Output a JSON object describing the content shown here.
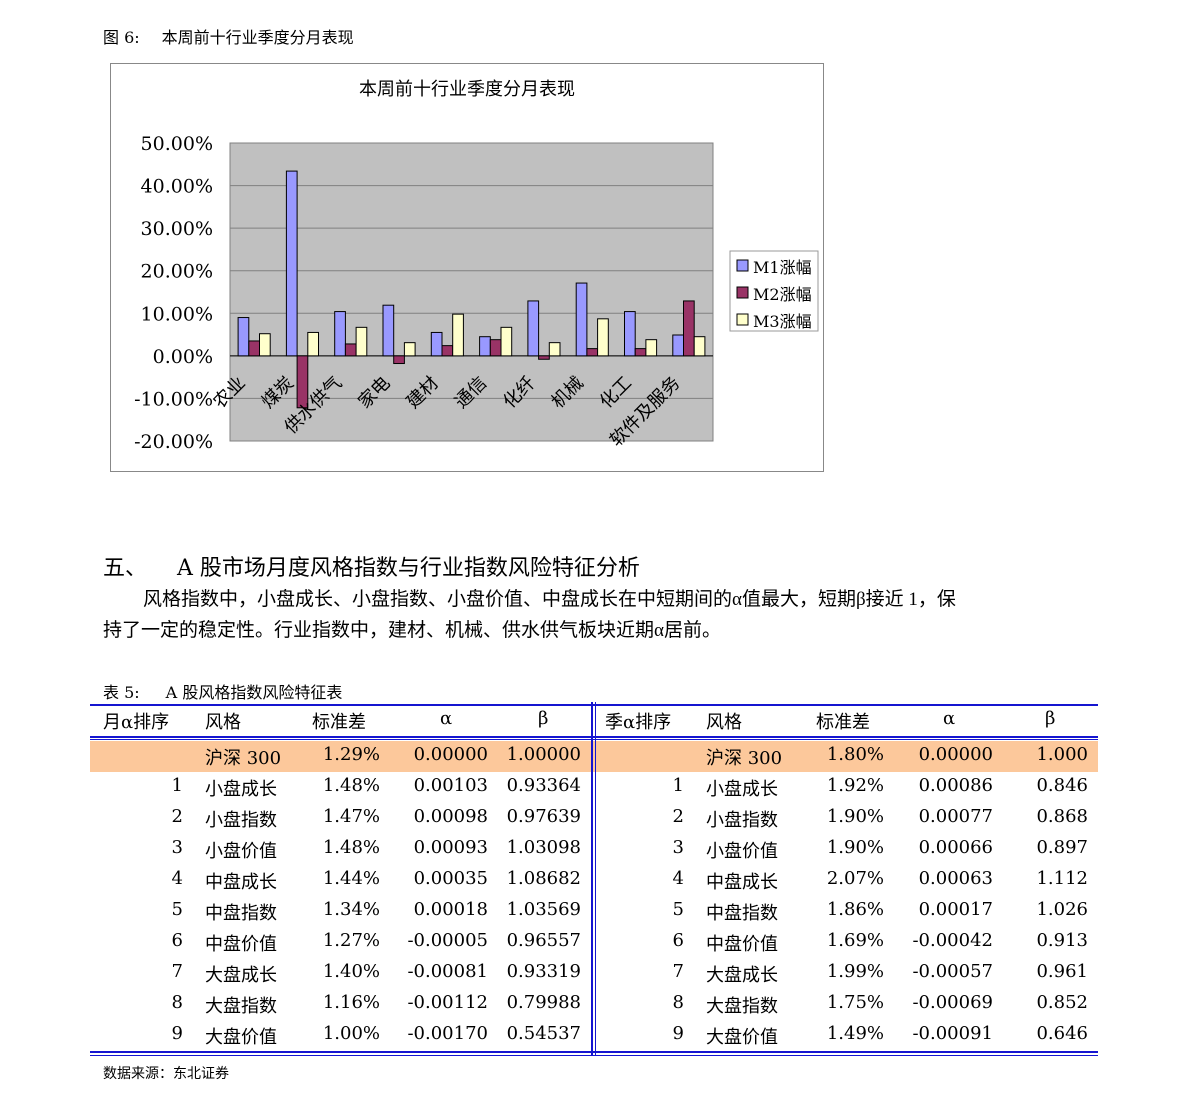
{
  "figure": {
    "label": "图 6:",
    "title": "本周前十行业季度分月表现"
  },
  "chart_data": {
    "type": "bar",
    "title": "本周前十行业季度分月表现",
    "categories": [
      "农业",
      "煤炭",
      "供水供气",
      "家电",
      "建材",
      "通信",
      "化纤",
      "机械",
      "化工",
      "软件及服务"
    ],
    "series": [
      {
        "name": "M1涨幅",
        "color": "#9999ff",
        "values": [
          9.0,
          43.4,
          10.4,
          11.9,
          5.5,
          4.5,
          12.9,
          17.1,
          10.4,
          4.9
        ]
      },
      {
        "name": "M2涨幅",
        "color": "#993366",
        "values": [
          3.5,
          -12.2,
          2.8,
          -1.8,
          2.4,
          3.8,
          -0.8,
          1.7,
          1.7,
          12.9
        ]
      },
      {
        "name": "M3涨幅",
        "color": "#ffffcc",
        "values": [
          5.2,
          5.5,
          6.7,
          3.1,
          9.8,
          6.7,
          3.1,
          8.7,
          3.8,
          4.5
        ]
      }
    ],
    "yticks": [
      "50.00%",
      "40.00%",
      "30.00%",
      "20.00%",
      "10.00%",
      "0.00%",
      "-10.00%",
      "-20.00%"
    ],
    "ylim": [
      -20,
      50
    ],
    "grid": true,
    "plot_background": "#c0c0c0",
    "legend": "right"
  },
  "section": {
    "number": "五、",
    "title": "A 股市场月度风格指数与行业指数风险特征分析",
    "para1": "风格指数中，小盘成长、小盘指数、小盘价值、中盘成长在中短期间的α值最大，短期β接近 1，保",
    "para2": "持了一定的稳定性。行业指数中，建材、机械、供水供气板块近期α居前。"
  },
  "table": {
    "label": "表 5:",
    "title": "A 股风格指数风险特征表",
    "left_headers": [
      "月α排序",
      "风格",
      "标准差",
      "α",
      "β"
    ],
    "right_headers": [
      "季α排序",
      "风格",
      "标准差",
      "α",
      "β"
    ],
    "highlight_color": "#fcc89b",
    "left_rows": [
      [
        "",
        "沪深 300",
        "1.29%",
        "0.00000",
        "1.00000"
      ],
      [
        "1",
        "小盘成长",
        "1.48%",
        "0.00103",
        "0.93364"
      ],
      [
        "2",
        "小盘指数",
        "1.47%",
        "0.00098",
        "0.97639"
      ],
      [
        "3",
        "小盘价值",
        "1.48%",
        "0.00093",
        "1.03098"
      ],
      [
        "4",
        "中盘成长",
        "1.44%",
        "0.00035",
        "1.08682"
      ],
      [
        "5",
        "中盘指数",
        "1.34%",
        "0.00018",
        "1.03569"
      ],
      [
        "6",
        "中盘价值",
        "1.27%",
        "-0.00005",
        "0.96557"
      ],
      [
        "7",
        "大盘成长",
        "1.40%",
        "-0.00081",
        "0.93319"
      ],
      [
        "8",
        "大盘指数",
        "1.16%",
        "-0.00112",
        "0.79988"
      ],
      [
        "9",
        "大盘价值",
        "1.00%",
        "-0.00170",
        "0.54537"
      ]
    ],
    "right_rows": [
      [
        "",
        "沪深 300",
        "1.80%",
        "0.00000",
        "1.000"
      ],
      [
        "1",
        "小盘成长",
        "1.92%",
        "0.00086",
        "0.846"
      ],
      [
        "2",
        "小盘指数",
        "1.90%",
        "0.00077",
        "0.868"
      ],
      [
        "3",
        "小盘价值",
        "1.90%",
        "0.00066",
        "0.897"
      ],
      [
        "4",
        "中盘成长",
        "2.07%",
        "0.00063",
        "1.112"
      ],
      [
        "5",
        "中盘指数",
        "1.86%",
        "0.00017",
        "1.026"
      ],
      [
        "6",
        "中盘价值",
        "1.69%",
        "-0.00042",
        "0.913"
      ],
      [
        "7",
        "大盘成长",
        "1.99%",
        "-0.00057",
        "0.961"
      ],
      [
        "8",
        "大盘指数",
        "1.75%",
        "-0.00069",
        "0.852"
      ],
      [
        "9",
        "大盘价值",
        "1.49%",
        "-0.00091",
        "0.646"
      ]
    ]
  },
  "source": "数据来源：东北证券"
}
